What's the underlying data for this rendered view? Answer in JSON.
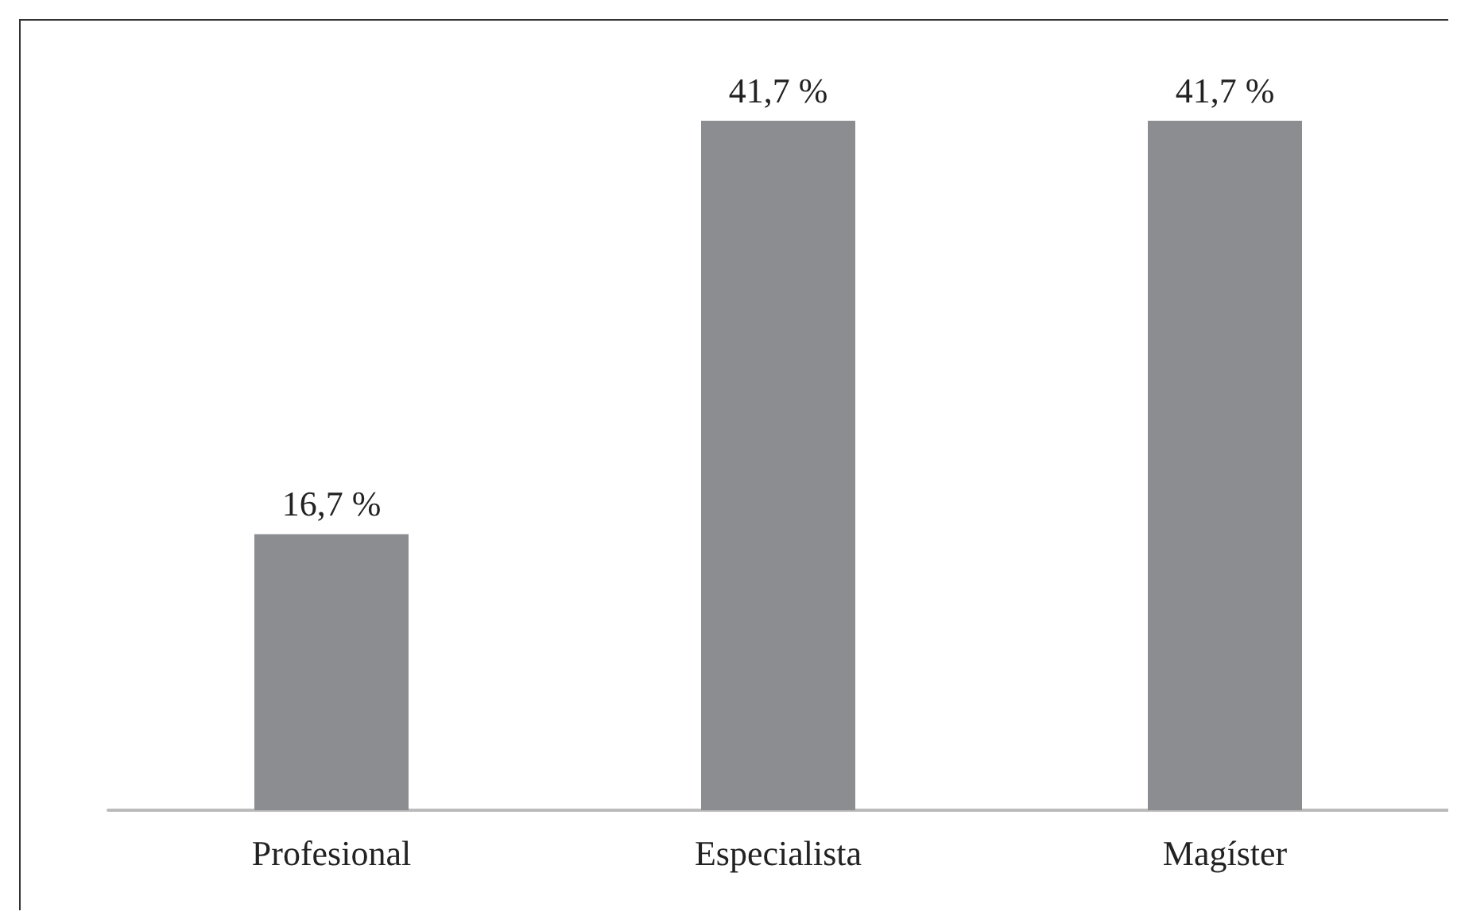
{
  "chart_data": {
    "type": "bar",
    "categories": [
      "Profesional",
      "Especialista",
      "Magíster"
    ],
    "values": [
      16.7,
      41.7,
      41.7
    ],
    "value_labels": [
      "16,7 %",
      "41,7 %",
      "41,7 %"
    ],
    "color": "#8c8d91"
  }
}
